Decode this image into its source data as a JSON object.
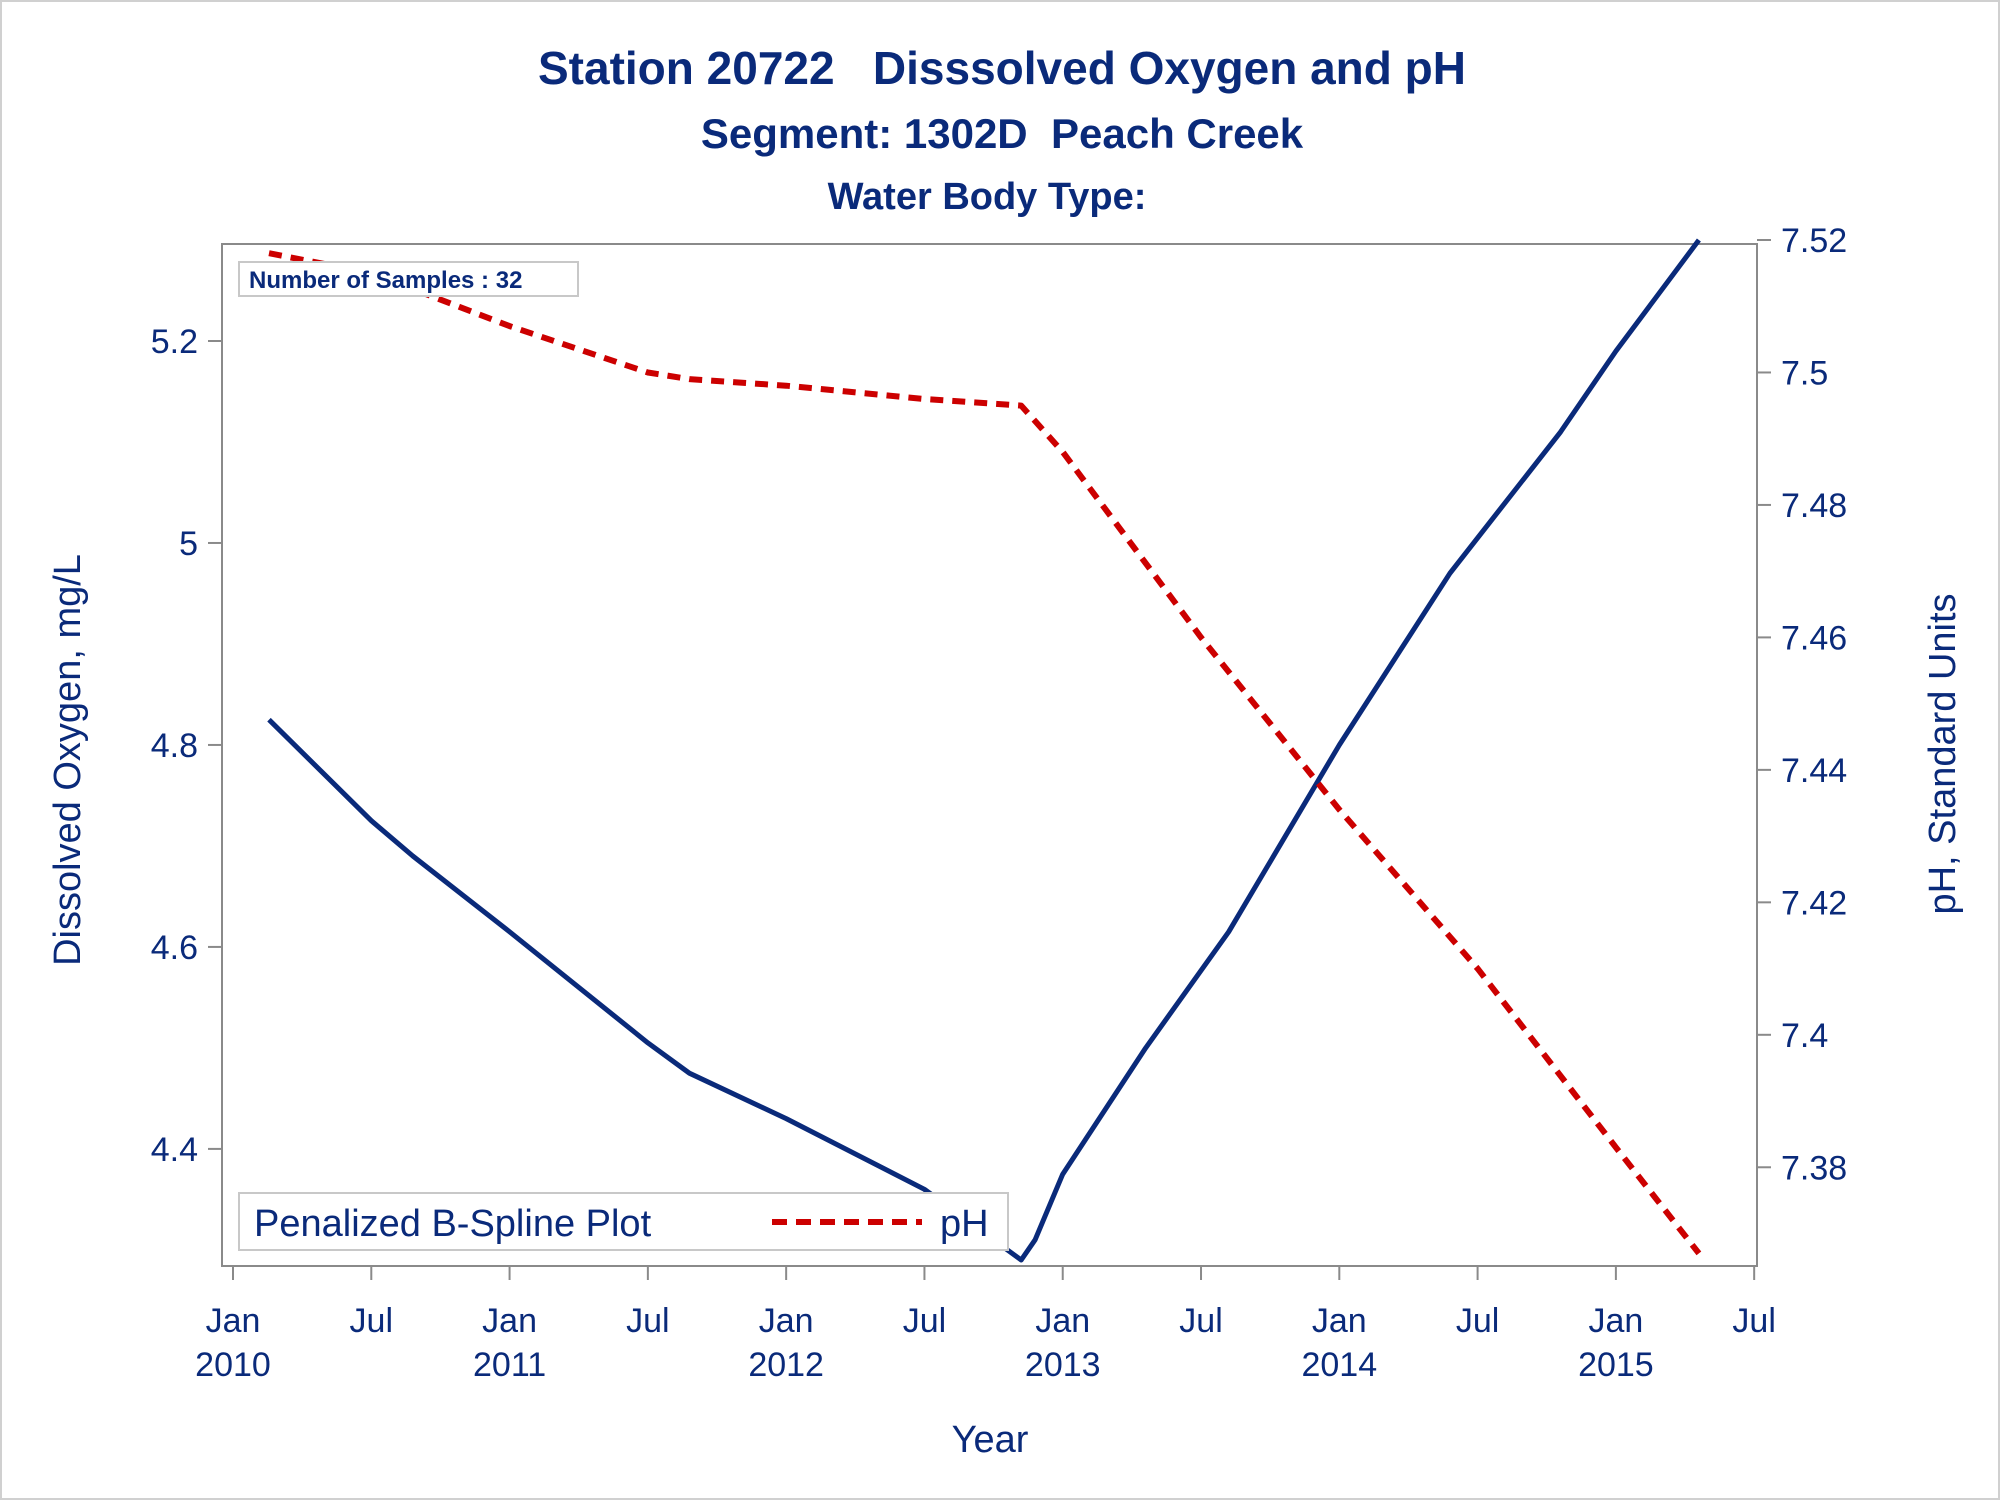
{
  "chart_data": {
    "type": "line",
    "title": "Station 20722   Disssolved Oxygen and pH",
    "subtitle": "Segment: 1302D  Peach Creek",
    "subtitle2": "Water Body Type:",
    "inset": "Number of Samples : 32",
    "xlabel": "Year",
    "ylabel_left": "Dissolved Oxygen, mg/L",
    "ylabel_right": "pH, Standard Units",
    "xlim": [
      2010.0,
      2015.55
    ],
    "ylim_left": [
      4.29,
      5.3
    ],
    "ylim_right": [
      7.366,
      7.52
    ],
    "x_ticks": [
      {
        "value": 2010.0,
        "line1": "Jan",
        "line2": "2010"
      },
      {
        "value": 2010.5,
        "line1": "Jul",
        "line2": ""
      },
      {
        "value": 2011.0,
        "line1": "Jan",
        "line2": "2011"
      },
      {
        "value": 2011.5,
        "line1": "Jul",
        "line2": ""
      },
      {
        "value": 2012.0,
        "line1": "Jan",
        "line2": "2012"
      },
      {
        "value": 2012.5,
        "line1": "Jul",
        "line2": ""
      },
      {
        "value": 2013.0,
        "line1": "Jan",
        "line2": "2013"
      },
      {
        "value": 2013.5,
        "line1": "Jul",
        "line2": ""
      },
      {
        "value": 2014.0,
        "line1": "Jan",
        "line2": "2014"
      },
      {
        "value": 2014.5,
        "line1": "Jul",
        "line2": ""
      },
      {
        "value": 2015.0,
        "line1": "Jan",
        "line2": "2015"
      },
      {
        "value": 2015.5,
        "line1": "Jul",
        "line2": ""
      }
    ],
    "y_ticks_left": [
      {
        "value": 4.4,
        "label": "4.4"
      },
      {
        "value": 4.6,
        "label": "4.6"
      },
      {
        "value": 4.8,
        "label": "4.8"
      },
      {
        "value": 5.0,
        "label": "5"
      },
      {
        "value": 5.2,
        "label": "5.2"
      }
    ],
    "y_ticks_right": [
      {
        "value": 7.38,
        "label": "7.38"
      },
      {
        "value": 7.4,
        "label": "7.4"
      },
      {
        "value": 7.42,
        "label": "7.42"
      },
      {
        "value": 7.44,
        "label": "7.44"
      },
      {
        "value": 7.46,
        "label": "7.46"
      },
      {
        "value": 7.48,
        "label": "7.48"
      },
      {
        "value": 7.5,
        "label": "7.5"
      },
      {
        "value": 7.52,
        "label": "7.52"
      }
    ],
    "series": [
      {
        "name": "Penalized B-Spline Plot",
        "axis": "left",
        "color": "#0a2a7a",
        "style": "solid",
        "x": [
          2010.13,
          2010.5,
          2010.65,
          2011.0,
          2011.5,
          2011.65,
          2012.0,
          2012.5,
          2012.85,
          2012.9,
          2013.0,
          2013.3,
          2013.6,
          2014.0,
          2014.4,
          2014.8,
          2015.0,
          2015.3
        ],
        "values": [
          4.825,
          4.725,
          4.69,
          4.615,
          4.505,
          4.475,
          4.43,
          4.36,
          4.29,
          4.31,
          4.375,
          4.5,
          4.615,
          4.8,
          4.97,
          5.11,
          5.19,
          5.3
        ]
      },
      {
        "name": "pH",
        "axis": "right",
        "color": "#cc0000",
        "style": "dashed",
        "x": [
          2010.13,
          2010.5,
          2011.0,
          2011.5,
          2011.65,
          2012.0,
          2012.5,
          2012.85,
          2013.0,
          2013.5,
          2014.0,
          2014.5,
          2015.0,
          2015.3
        ],
        "values": [
          7.518,
          7.515,
          7.507,
          7.5,
          7.499,
          7.498,
          7.496,
          7.495,
          7.488,
          7.46,
          7.434,
          7.41,
          7.383,
          7.367
        ]
      }
    ],
    "legend": {
      "placement": "bottom-left",
      "entries": [
        {
          "label": "Penalized B-Spline Plot",
          "color": "#0a2a7a",
          "style": "solid"
        },
        {
          "label": "pH",
          "color": "#cc0000",
          "style": "dashed"
        }
      ]
    },
    "grid": false
  }
}
